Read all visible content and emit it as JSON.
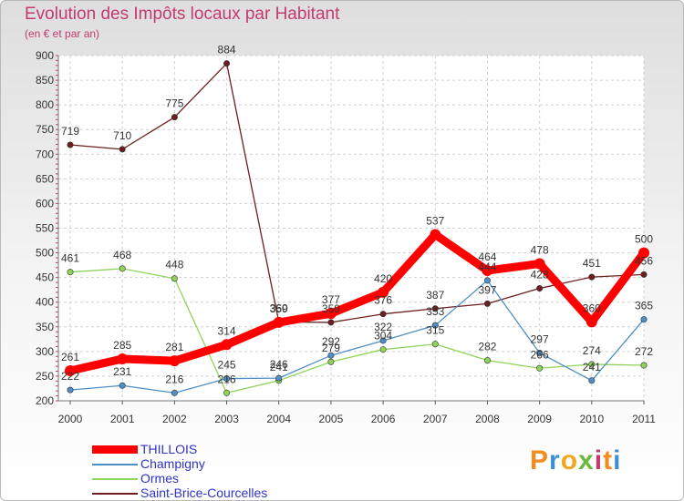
{
  "title": "Evolution des Impôts locaux par Habitant",
  "subtitle": "(en € et par an)",
  "brand": {
    "letters": [
      "P",
      "r",
      "o",
      "x",
      "i",
      "t",
      "i"
    ],
    "colors": [
      "#f28c1e",
      "#3f8fd2",
      "#f2a81e",
      "#6bb93a",
      "#c43a6e",
      "#f28c1e",
      "#3f8fd2"
    ]
  },
  "chart_data": {
    "type": "line",
    "x": [
      "2000",
      "2001",
      "2002",
      "2003",
      "2004",
      "2005",
      "2006",
      "2007",
      "2008",
      "2009",
      "2010",
      "2011"
    ],
    "ylim": [
      200,
      900
    ],
    "yticks": [
      200,
      250,
      300,
      350,
      400,
      450,
      500,
      550,
      600,
      650,
      700,
      750,
      800,
      850,
      900
    ],
    "grid": true,
    "series": [
      {
        "name": "THILLOIS",
        "color": "#ff0000",
        "values": [
          261,
          285,
          281,
          314,
          359,
          377,
          420,
          537,
          464,
          478,
          360,
          500
        ]
      },
      {
        "name": "Champigny",
        "color": "#4f8fc6",
        "values": [
          222,
          231,
          216,
          245,
          246,
          292,
          322,
          353,
          444,
          297,
          241,
          365
        ]
      },
      {
        "name": "Ormes",
        "color": "#8ed45a",
        "values": [
          461,
          468,
          448,
          216,
          241,
          279,
          304,
          315,
          282,
          266,
          274,
          272
        ]
      },
      {
        "name": "Saint-Brice-Courcelles",
        "color": "#6e1e1e",
        "values": [
          719,
          710,
          775,
          884,
          360,
          359,
          376,
          387,
          397,
          428,
          451,
          456
        ]
      }
    ]
  }
}
